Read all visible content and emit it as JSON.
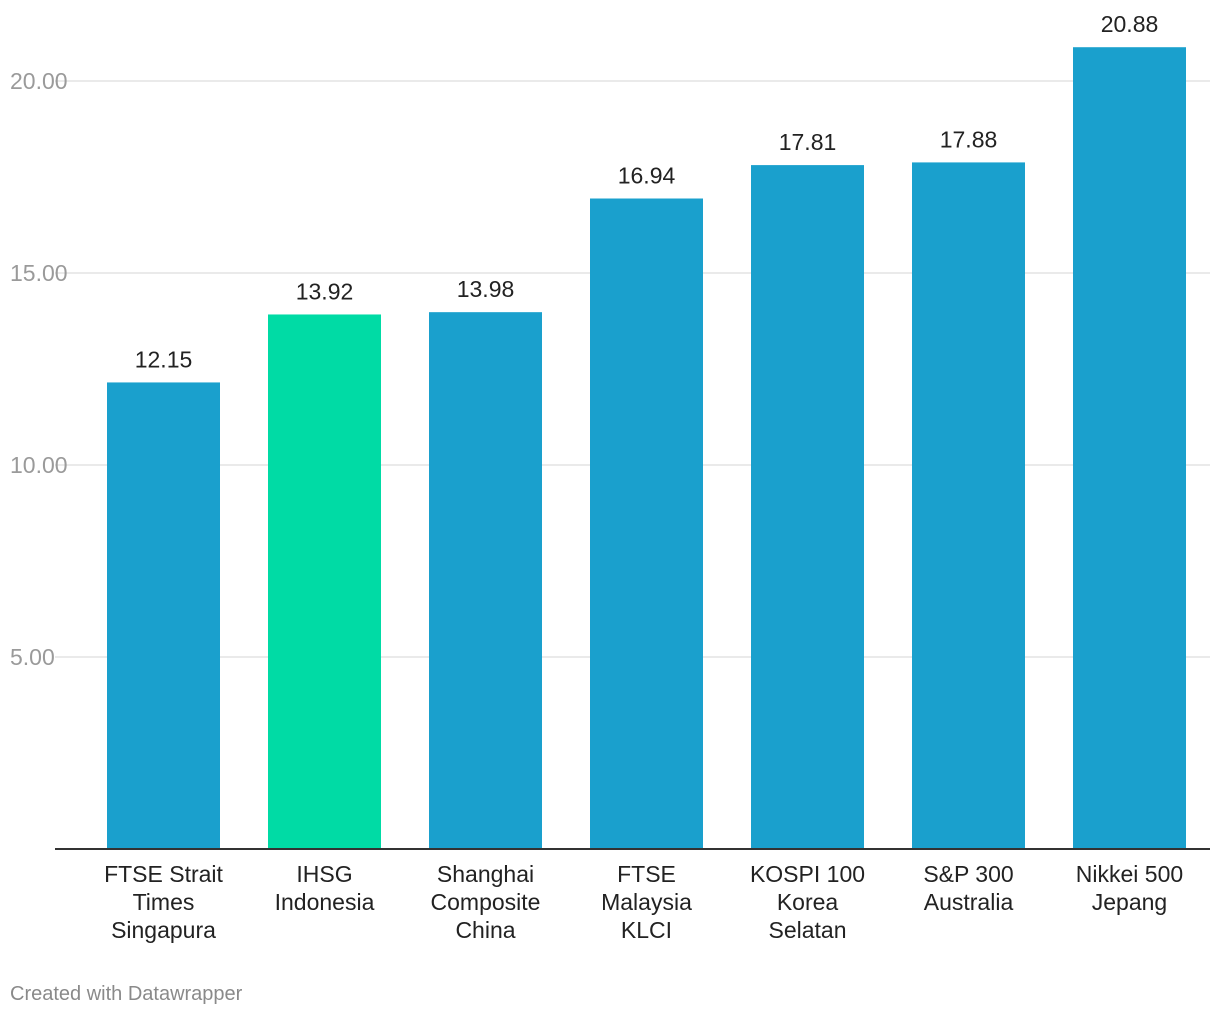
{
  "chart_data": {
    "type": "bar",
    "categories": [
      [
        "FTSE Strait",
        "Times",
        "Singapura"
      ],
      [
        "IHSG",
        "Indonesia"
      ],
      [
        "Shanghai",
        "Composite",
        "China"
      ],
      [
        "FTSE",
        "Malaysia",
        "KLCI"
      ],
      [
        "KOSPI 100",
        "Korea",
        "Selatan"
      ],
      [
        "S&P 300",
        "Australia"
      ],
      [
        "Nikkei 500",
        "Jepang"
      ]
    ],
    "values": [
      12.15,
      13.92,
      13.98,
      16.94,
      17.81,
      17.88,
      20.88
    ],
    "value_labels": [
      "12.15",
      "13.92",
      "13.98",
      "16.94",
      "17.81",
      "17.88",
      "20.88"
    ],
    "highlight_index": 1,
    "ylim": [
      0,
      22
    ],
    "yticks": [
      5,
      10,
      15,
      20
    ],
    "ytick_labels": [
      "5.00",
      "10.00",
      "15.00",
      "20.00"
    ],
    "grid": true,
    "colors": {
      "bar": "#1aa0cd",
      "highlight": "#00dba5",
      "grid": "#e3e3e3",
      "axis": "#333333"
    }
  },
  "footer": {
    "credit": "Created with Datawrapper"
  }
}
